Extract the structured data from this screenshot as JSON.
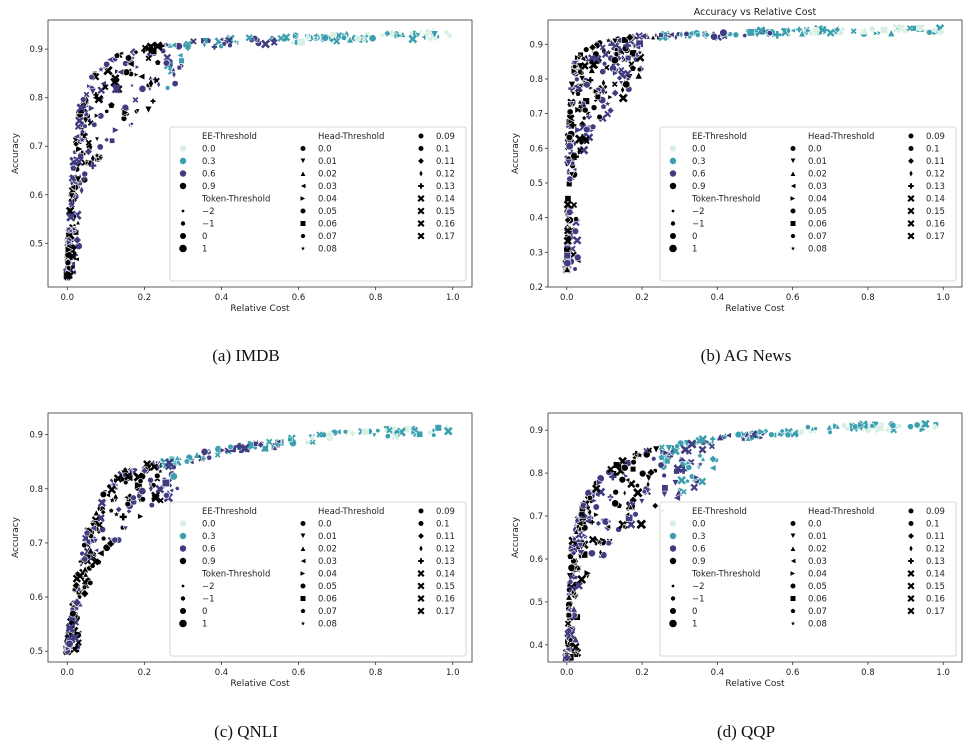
{
  "figure": {
    "captions": [
      "(a) IMDB",
      "(b) AG News",
      "(c) QNLI",
      "(d) QQP"
    ]
  },
  "legend": {
    "ee_title": "EE-Threshold",
    "ee_entries": [
      {
        "label": "0.0",
        "color": "#d7f0e3"
      },
      {
        "label": "0.3",
        "color": "#3a9fae"
      },
      {
        "label": "0.6",
        "color": "#403c80"
      },
      {
        "label": "0.9",
        "color": "#000000"
      }
    ],
    "token_title": "Token-Threshold",
    "token_entries": [
      "−2",
      "−1",
      "0",
      "1"
    ],
    "head_title": "Head-Threshold",
    "head_entries": [
      "0.0",
      "0.01",
      "0.02",
      "0.03",
      "0.04",
      "0.05",
      "0.06",
      "0.07",
      "0.08",
      "0.09",
      "0.1",
      "0.11",
      "0.12",
      "0.13",
      "0.14",
      "0.15",
      "0.16",
      "0.17"
    ],
    "head_markers": [
      "circle",
      "tri-down",
      "tri-up",
      "tri-left",
      "tri-right",
      "octagon",
      "square",
      "pentagon",
      "star",
      "hexagon",
      "hexagon2",
      "diamond",
      "thin-diamond",
      "plus",
      "x",
      "x",
      "x",
      "x"
    ]
  },
  "chart_data": [
    {
      "type": "scatter",
      "title": "",
      "xlabel": "Relative Cost",
      "ylabel": "Accuracy",
      "xlim": [
        -0.05,
        1.05
      ],
      "ylim": [
        0.41,
        0.96
      ],
      "xticks": [
        0.0,
        0.2,
        0.4,
        0.6,
        0.8,
        1.0
      ],
      "yticks": [
        0.5,
        0.6,
        0.7,
        0.8,
        0.9
      ],
      "frontier": {
        "x": [
          0.0,
          0.01,
          0.03,
          0.06,
          0.1,
          0.15,
          0.2,
          0.3,
          0.4,
          0.5,
          0.6,
          0.7,
          0.8,
          0.9,
          1.0
        ],
        "y": [
          0.43,
          0.62,
          0.77,
          0.84,
          0.875,
          0.895,
          0.905,
          0.915,
          0.92,
          0.925,
          0.928,
          0.93,
          0.932,
          0.934,
          0.935
        ]
      },
      "approx_cloud": {
        "x_max": 0.3,
        "y_min": 0.43,
        "outliers_x_max": 0.1,
        "outliers_y": [
          0.49,
          0.52
        ]
      }
    },
    {
      "type": "scatter",
      "title": "Accuracy vs Relative Cost",
      "xlabel": "Relative Cost",
      "ylabel": "Accuracy",
      "xlim": [
        -0.05,
        1.05
      ],
      "ylim": [
        0.2,
        0.97
      ],
      "xticks": [
        0.0,
        0.2,
        0.4,
        0.6,
        0.8,
        1.0
      ],
      "yticks": [
        0.2,
        0.3,
        0.4,
        0.5,
        0.6,
        0.7,
        0.8,
        0.9
      ],
      "frontier": {
        "x": [
          0.0,
          0.005,
          0.01,
          0.02,
          0.04,
          0.07,
          0.1,
          0.15,
          0.2,
          0.3,
          0.5,
          0.7,
          1.0
        ],
        "y": [
          0.25,
          0.6,
          0.75,
          0.84,
          0.88,
          0.9,
          0.91,
          0.92,
          0.925,
          0.93,
          0.94,
          0.945,
          0.948
        ]
      },
      "approx_cloud": {
        "x_max": 0.2,
        "y_min": 0.25,
        "outliers_x_max": 0.1,
        "outliers_y": [
          0.35,
          0.6
        ]
      }
    },
    {
      "type": "scatter",
      "title": "",
      "xlabel": "Relative Cost",
      "ylabel": "Accuracy",
      "xlim": [
        -0.05,
        1.05
      ],
      "ylim": [
        0.48,
        0.94
      ],
      "xticks": [
        0.0,
        0.2,
        0.4,
        0.6,
        0.8,
        1.0
      ],
      "yticks": [
        0.5,
        0.6,
        0.7,
        0.8,
        0.9
      ],
      "frontier": {
        "x": [
          0.0,
          0.02,
          0.05,
          0.1,
          0.15,
          0.2,
          0.3,
          0.4,
          0.5,
          0.6,
          0.7,
          0.8,
          0.9,
          1.0
        ],
        "y": [
          0.5,
          0.62,
          0.72,
          0.8,
          0.83,
          0.845,
          0.86,
          0.875,
          0.885,
          0.895,
          0.905,
          0.91,
          0.913,
          0.915
        ]
      },
      "approx_cloud": {
        "x_max": 0.3,
        "y_min": 0.5,
        "outliers_x_max": 0.2,
        "outliers_y": [
          0.5,
          0.68
        ]
      }
    },
    {
      "type": "scatter",
      "title": "",
      "xlabel": "Relative Cost",
      "ylabel": "Accuracy",
      "xlim": [
        -0.05,
        1.05
      ],
      "ylim": [
        0.36,
        0.94
      ],
      "xticks": [
        0.0,
        0.2,
        0.4,
        0.6,
        0.8,
        1.0
      ],
      "yticks": [
        0.4,
        0.5,
        0.6,
        0.7,
        0.8,
        0.9
      ],
      "frontier": {
        "x": [
          0.0,
          0.01,
          0.03,
          0.06,
          0.1,
          0.15,
          0.2,
          0.3,
          0.4,
          0.5,
          0.6,
          0.7,
          0.8,
          1.0
        ],
        "y": [
          0.37,
          0.62,
          0.7,
          0.76,
          0.8,
          0.83,
          0.85,
          0.87,
          0.885,
          0.895,
          0.905,
          0.91,
          0.913,
          0.915
        ]
      },
      "approx_cloud": {
        "x_max": 0.4,
        "y_min": 0.37,
        "outliers_x_max": 0.2,
        "outliers_y": [
          0.55,
          0.7
        ]
      }
    }
  ]
}
